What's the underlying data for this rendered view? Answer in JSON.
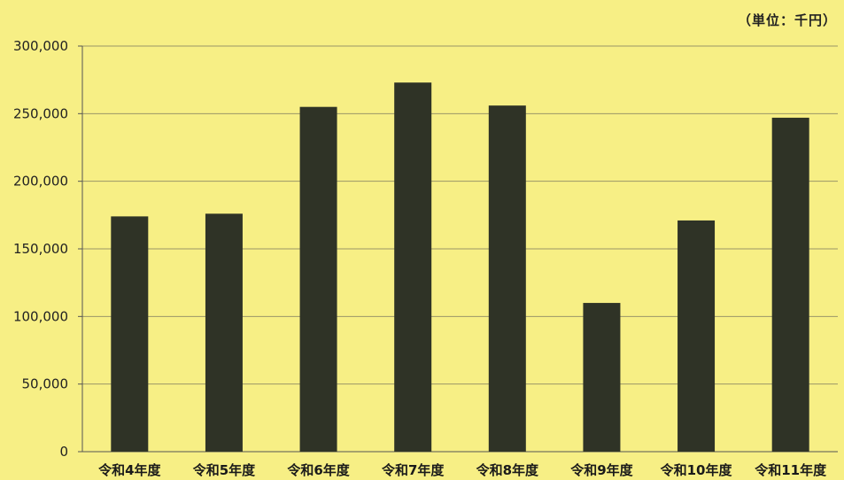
{
  "unit_label": "（単位：千円）",
  "chart_data": {
    "type": "bar",
    "categories": [
      "令和4年度",
      "令和5年度",
      "令和6年度",
      "令和7年度",
      "令和8年度",
      "令和9年度",
      "令和10年度",
      "令和11年度"
    ],
    "values": [
      174000,
      176000,
      255000,
      273000,
      256000,
      110000,
      171000,
      247000
    ],
    "ylim": [
      0,
      300000
    ],
    "yticks": [
      0,
      50000,
      100000,
      150000,
      200000,
      250000,
      300000
    ],
    "ytick_labels": [
      "0",
      "50,000",
      "100,000",
      "150,000",
      "200,000",
      "250,000",
      "300,000"
    ],
    "grid": true,
    "bar_color": "#2f3326",
    "background_color": "#f7ef85",
    "grid_color": "#9a9668"
  }
}
